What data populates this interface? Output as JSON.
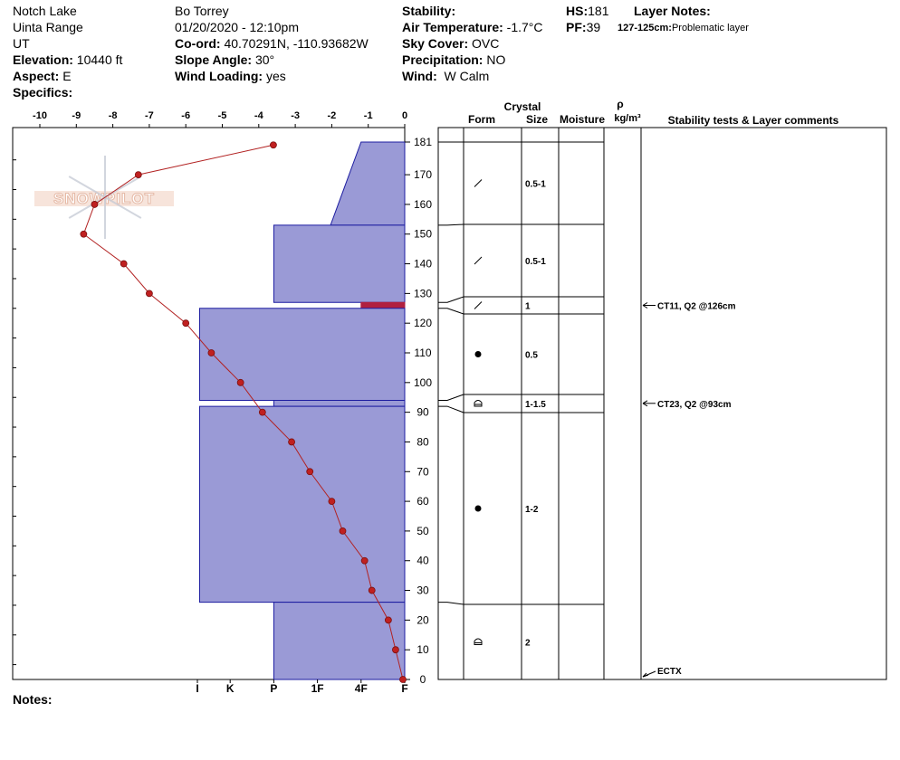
{
  "header": {
    "col1": [
      "Notch Lake",
      "Uinta Range",
      "UT"
    ],
    "elevation_label": "Elevation:",
    "elevation_value": "10440 ft",
    "aspect_label": "Aspect:",
    "aspect_value": "E",
    "specifics_label": "Specifics:",
    "observer": "Bo Torrey",
    "datetime": "01/20/2020 - 12:10pm",
    "coord_label": "Co-ord:",
    "coord_value": "40.70291N, -110.93682W",
    "slope_label": "Slope Angle:",
    "slope_value": "30°",
    "wind_loading_label": "Wind Loading:",
    "wind_loading_value": "yes",
    "stability_label": "Stability:",
    "air_temp_label": "Air Temperature:",
    "air_temp_value": "-1.7°C",
    "sky_label": "Sky Cover:",
    "sky_value": "OVC",
    "precip_label": "Precipitation:",
    "precip_value": "NO",
    "wind_label": "Wind:",
    "wind_value": "W Calm",
    "hs_label": "HS:",
    "hs_value": "181",
    "pf_label": "PF:",
    "pf_value": "39",
    "layer_notes_label": "Layer Notes:",
    "layer_note_range": "127-125cm:",
    "layer_note_text": "Problematic layer"
  },
  "notes_label": "Notes:",
  "watermark_text": "SNOWPILOT",
  "colors": {
    "hardness_fill": "#9a9ad6",
    "hardness_stroke": "#1c1ca0",
    "temp_line": "#b22222",
    "temp_point": "#c02020",
    "problem_layer": "#b02040"
  },
  "chart_data": {
    "type": "snow-profile",
    "temperature_axis": {
      "ticks": [
        -10,
        -9,
        -8,
        -7,
        -6,
        -5,
        -4,
        -3,
        -2,
        -1,
        0
      ],
      "tick_labels": [
        "-10",
        "-9",
        "-8",
        "-7",
        "-6",
        "-5",
        "-4",
        "-3",
        "-2",
        "-1",
        "0"
      ],
      "range": [
        -10.5,
        0
      ]
    },
    "hardness_axis": {
      "labels": [
        "I",
        "K",
        "P",
        "1F",
        "4F",
        "F"
      ],
      "scale_values": [
        5,
        4,
        3,
        2,
        1,
        0
      ],
      "range": [
        5.3,
        0
      ]
    },
    "depth_axis": {
      "ticks": [
        0,
        10,
        20,
        30,
        40,
        50,
        60,
        70,
        80,
        90,
        100,
        110,
        120,
        130,
        140,
        150,
        160,
        170,
        181
      ],
      "range": [
        0,
        181
      ]
    },
    "temperature_profile": [
      {
        "depth": 180,
        "temp": -3.6
      },
      {
        "depth": 170,
        "temp": -7.3
      },
      {
        "depth": 160,
        "temp": -8.5
      },
      {
        "depth": 150,
        "temp": -8.8
      },
      {
        "depth": 140,
        "temp": -7.7
      },
      {
        "depth": 130,
        "temp": -7.0
      },
      {
        "depth": 120,
        "temp": -6.0
      },
      {
        "depth": 110,
        "temp": -5.3
      },
      {
        "depth": 100,
        "temp": -4.5
      },
      {
        "depth": 90,
        "temp": -3.9
      },
      {
        "depth": 80,
        "temp": -3.1
      },
      {
        "depth": 70,
        "temp": -2.6
      },
      {
        "depth": 60,
        "temp": -2.0
      },
      {
        "depth": 50,
        "temp": -1.7
      },
      {
        "depth": 40,
        "temp": -1.1
      },
      {
        "depth": 30,
        "temp": -0.9
      },
      {
        "depth": 20,
        "temp": -0.45
      },
      {
        "depth": 10,
        "temp": -0.25
      },
      {
        "depth": 0,
        "temp": -0.05
      }
    ],
    "hardness_layers": [
      {
        "bottom": 153,
        "top": 181,
        "hard_top": 1.0,
        "hard_bottom": 1.7
      },
      {
        "bottom": 127,
        "top": 153,
        "hard_top": 3.0,
        "hard_bottom": 3.0
      },
      {
        "bottom": 125,
        "top": 127,
        "hard_top": 1.0,
        "hard_bottom": 1.0,
        "problematic": true
      },
      {
        "bottom": 94,
        "top": 125,
        "hard_top": 4.7,
        "hard_bottom": 4.7
      },
      {
        "bottom": 92,
        "top": 94,
        "hard_top": 3.0,
        "hard_bottom": 3.0
      },
      {
        "bottom": 26,
        "top": 92,
        "hard_top": 4.7,
        "hard_bottom": 4.7
      },
      {
        "bottom": 0,
        "top": 26,
        "hard_top": 3.0,
        "hard_bottom": 3.0
      }
    ],
    "column_headers": {
      "crystal": "Crystal",
      "form": "Form",
      "size": "Size",
      "moisture": "Moisture",
      "rho": "ρ",
      "density_unit": "kg/m³",
      "comments": "Stability tests & Layer comments"
    },
    "layer_table": [
      {
        "top": 181,
        "bottom": 153,
        "form": "dash",
        "size": "0.5-1"
      },
      {
        "top": 153,
        "bottom": 127,
        "form": "dash",
        "size": "0.5-1"
      },
      {
        "top": 127,
        "bottom": 125,
        "form": "dash",
        "size": "1"
      },
      {
        "top": 125,
        "bottom": 94,
        "form": "dot",
        "size": "0.5"
      },
      {
        "top": 94,
        "bottom": 92,
        "form": "facet",
        "size": "1-1.5"
      },
      {
        "top": 92,
        "bottom": 26,
        "form": "dot",
        "size": "1-2"
      },
      {
        "top": 26,
        "bottom": 0,
        "form": "facet",
        "size": "2"
      }
    ],
    "stability_tests": [
      {
        "depth": 126,
        "label": "CT11, Q2 @126cm"
      },
      {
        "depth": 93,
        "label": "CT23, Q2 @93cm"
      },
      {
        "depth": 0,
        "label": "ECTX"
      }
    ]
  }
}
